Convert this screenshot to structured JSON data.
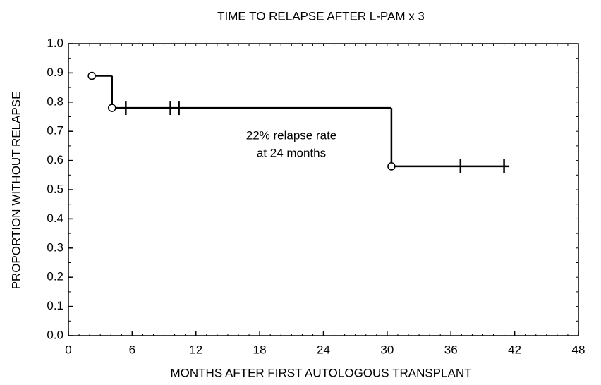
{
  "chart_data": {
    "type": "step",
    "title": "TIME TO RELAPSE AFTER L-PAM x 3",
    "x_label": "MONTHS AFTER FIRST AUTOLOGOUS TRANSPLANT",
    "y_label": "PROPORTION WITHOUT RELAPSE",
    "annotation": [
      "22% relapse rate",
      "at 24 months"
    ],
    "curve": {
      "x": [
        2.2,
        4.1,
        30.4,
        41.5
      ],
      "values": [
        0.89,
        0.78,
        0.58,
        0.58
      ]
    },
    "events": {
      "x": [
        2.2,
        4.1,
        30.4
      ],
      "values": [
        0.89,
        0.78,
        0.58
      ]
    },
    "censored": {
      "x": [
        5.4,
        9.6,
        10.4,
        36.9,
        41.0
      ],
      "values": [
        0.78,
        0.78,
        0.78,
        0.58,
        0.58
      ]
    },
    "color": "#000000",
    "xlim": [
      0,
      48
    ],
    "ylim": [
      0,
      1
    ],
    "xticks": [
      0,
      6,
      12,
      18,
      24,
      30,
      36,
      42,
      48
    ],
    "yticks": [
      {
        "value": 0,
        "label": "0.0"
      },
      0.1,
      0.2,
      0.3,
      0.4,
      0.5,
      0.6,
      0.7,
      0.8,
      0.9,
      {
        "value": 1,
        "label": "1.0"
      }
    ]
  }
}
